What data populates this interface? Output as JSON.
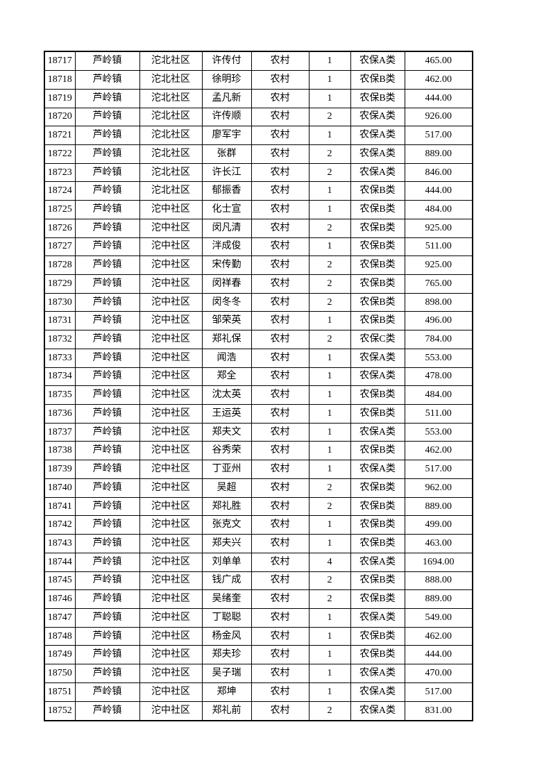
{
  "page": {
    "background_color": "#ffffff",
    "text_color": "#000000",
    "grid_line_color": "#000000"
  },
  "table": {
    "column_keys": [
      "id",
      "town",
      "community",
      "name",
      "category",
      "persons",
      "insurance_type",
      "amount"
    ],
    "rows": [
      [
        "18717",
        "芦岭镇",
        "沱北社区",
        "许传付",
        "农村",
        "1",
        "农保A类",
        "465.00"
      ],
      [
        "18718",
        "芦岭镇",
        "沱北社区",
        "徐明珍",
        "农村",
        "1",
        "农保B类",
        "462.00"
      ],
      [
        "18719",
        "芦岭镇",
        "沱北社区",
        "孟凡新",
        "农村",
        "1",
        "农保B类",
        "444.00"
      ],
      [
        "18720",
        "芦岭镇",
        "沱北社区",
        "许传顺",
        "农村",
        "2",
        "农保A类",
        "926.00"
      ],
      [
        "18721",
        "芦岭镇",
        "沱北社区",
        "廖军宇",
        "农村",
        "1",
        "农保A类",
        "517.00"
      ],
      [
        "18722",
        "芦岭镇",
        "沱北社区",
        "张群",
        "农村",
        "2",
        "农保A类",
        "889.00"
      ],
      [
        "18723",
        "芦岭镇",
        "沱北社区",
        "许长江",
        "农村",
        "2",
        "农保A类",
        "846.00"
      ],
      [
        "18724",
        "芦岭镇",
        "沱北社区",
        "郁振香",
        "农村",
        "1",
        "农保B类",
        "444.00"
      ],
      [
        "18725",
        "芦岭镇",
        "沱中社区",
        "化士宣",
        "农村",
        "1",
        "农保B类",
        "484.00"
      ],
      [
        "18726",
        "芦岭镇",
        "沱中社区",
        "闵凡清",
        "农村",
        "2",
        "农保B类",
        "925.00"
      ],
      [
        "18727",
        "芦岭镇",
        "沱中社区",
        "泮成俊",
        "农村",
        "1",
        "农保B类",
        "511.00"
      ],
      [
        "18728",
        "芦岭镇",
        "沱中社区",
        "宋传勤",
        "农村",
        "2",
        "农保B类",
        "925.00"
      ],
      [
        "18729",
        "芦岭镇",
        "沱中社区",
        "闵祥春",
        "农村",
        "2",
        "农保B类",
        "765.00"
      ],
      [
        "18730",
        "芦岭镇",
        "沱中社区",
        "闵冬冬",
        "农村",
        "2",
        "农保B类",
        "898.00"
      ],
      [
        "18731",
        "芦岭镇",
        "沱中社区",
        "邹荣英",
        "农村",
        "1",
        "农保B类",
        "496.00"
      ],
      [
        "18732",
        "芦岭镇",
        "沱中社区",
        "郑礼保",
        "农村",
        "2",
        "农保C类",
        "784.00"
      ],
      [
        "18733",
        "芦岭镇",
        "沱中社区",
        "闻浩",
        "农村",
        "1",
        "农保A类",
        "553.00"
      ],
      [
        "18734",
        "芦岭镇",
        "沱中社区",
        "郑全",
        "农村",
        "1",
        "农保A类",
        "478.00"
      ],
      [
        "18735",
        "芦岭镇",
        "沱中社区",
        "沈太英",
        "农村",
        "1",
        "农保B类",
        "484.00"
      ],
      [
        "18736",
        "芦岭镇",
        "沱中社区",
        "王运英",
        "农村",
        "1",
        "农保B类",
        "511.00"
      ],
      [
        "18737",
        "芦岭镇",
        "沱中社区",
        "郑夫文",
        "农村",
        "1",
        "农保A类",
        "553.00"
      ],
      [
        "18738",
        "芦岭镇",
        "沱中社区",
        "谷秀荣",
        "农村",
        "1",
        "农保B类",
        "462.00"
      ],
      [
        "18739",
        "芦岭镇",
        "沱中社区",
        "丁亚州",
        "农村",
        "1",
        "农保A类",
        "517.00"
      ],
      [
        "18740",
        "芦岭镇",
        "沱中社区",
        "吴超",
        "农村",
        "2",
        "农保B类",
        "962.00"
      ],
      [
        "18741",
        "芦岭镇",
        "沱中社区",
        "郑礼胜",
        "农村",
        "2",
        "农保B类",
        "889.00"
      ],
      [
        "18742",
        "芦岭镇",
        "沱中社区",
        "张克文",
        "农村",
        "1",
        "农保B类",
        "499.00"
      ],
      [
        "18743",
        "芦岭镇",
        "沱中社区",
        "郑夫兴",
        "农村",
        "1",
        "农保B类",
        "463.00"
      ],
      [
        "18744",
        "芦岭镇",
        "沱中社区",
        "刘单单",
        "农村",
        "4",
        "农保A类",
        "1694.00"
      ],
      [
        "18745",
        "芦岭镇",
        "沱中社区",
        "钱广成",
        "农村",
        "2",
        "农保B类",
        "888.00"
      ],
      [
        "18746",
        "芦岭镇",
        "沱中社区",
        "吴绪奎",
        "农村",
        "2",
        "农保B类",
        "889.00"
      ],
      [
        "18747",
        "芦岭镇",
        "沱中社区",
        "丁聪聪",
        "农村",
        "1",
        "农保A类",
        "549.00"
      ],
      [
        "18748",
        "芦岭镇",
        "沱中社区",
        "杨金风",
        "农村",
        "1",
        "农保B类",
        "462.00"
      ],
      [
        "18749",
        "芦岭镇",
        "沱中社区",
        "郑夫珍",
        "农村",
        "1",
        "农保B类",
        "444.00"
      ],
      [
        "18750",
        "芦岭镇",
        "沱中社区",
        "吴子瑞",
        "农村",
        "1",
        "农保A类",
        "470.00"
      ],
      [
        "18751",
        "芦岭镇",
        "沱中社区",
        "郑坤",
        "农村",
        "1",
        "农保A类",
        "517.00"
      ],
      [
        "18752",
        "芦岭镇",
        "沱中社区",
        "郑礼前",
        "农村",
        "2",
        "农保A类",
        "831.00"
      ]
    ]
  }
}
